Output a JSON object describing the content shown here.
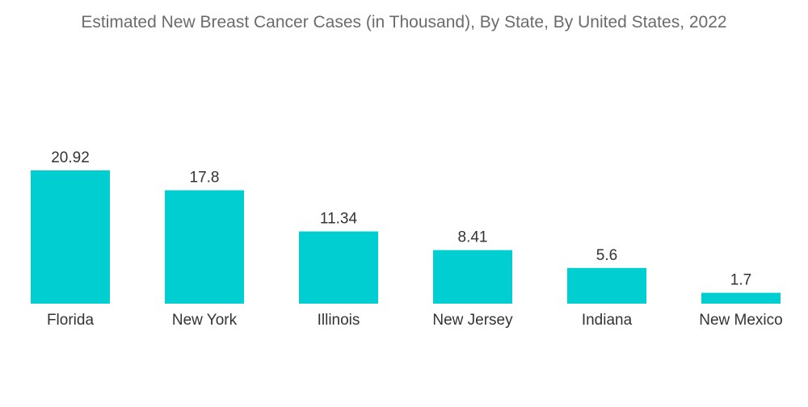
{
  "chart_data": {
    "type": "bar",
    "title": "Estimated New Breast Cancer Cases (in Thousand), By State, By United States, 2022",
    "xlabel": "",
    "ylabel": "",
    "categories": [
      "Florida",
      "New York",
      "Illinois",
      "New Jersey",
      "Indiana",
      "New Mexico"
    ],
    "values": [
      20.92,
      17.8,
      11.34,
      8.41,
      5.6,
      1.7
    ],
    "value_labels": [
      "20.92",
      "17.8",
      "11.34",
      "8.41",
      "5.6",
      "1.7"
    ],
    "ylim": [
      0,
      20.92
    ],
    "grid": false,
    "legend": "none",
    "bar_color": "#00CED1"
  }
}
